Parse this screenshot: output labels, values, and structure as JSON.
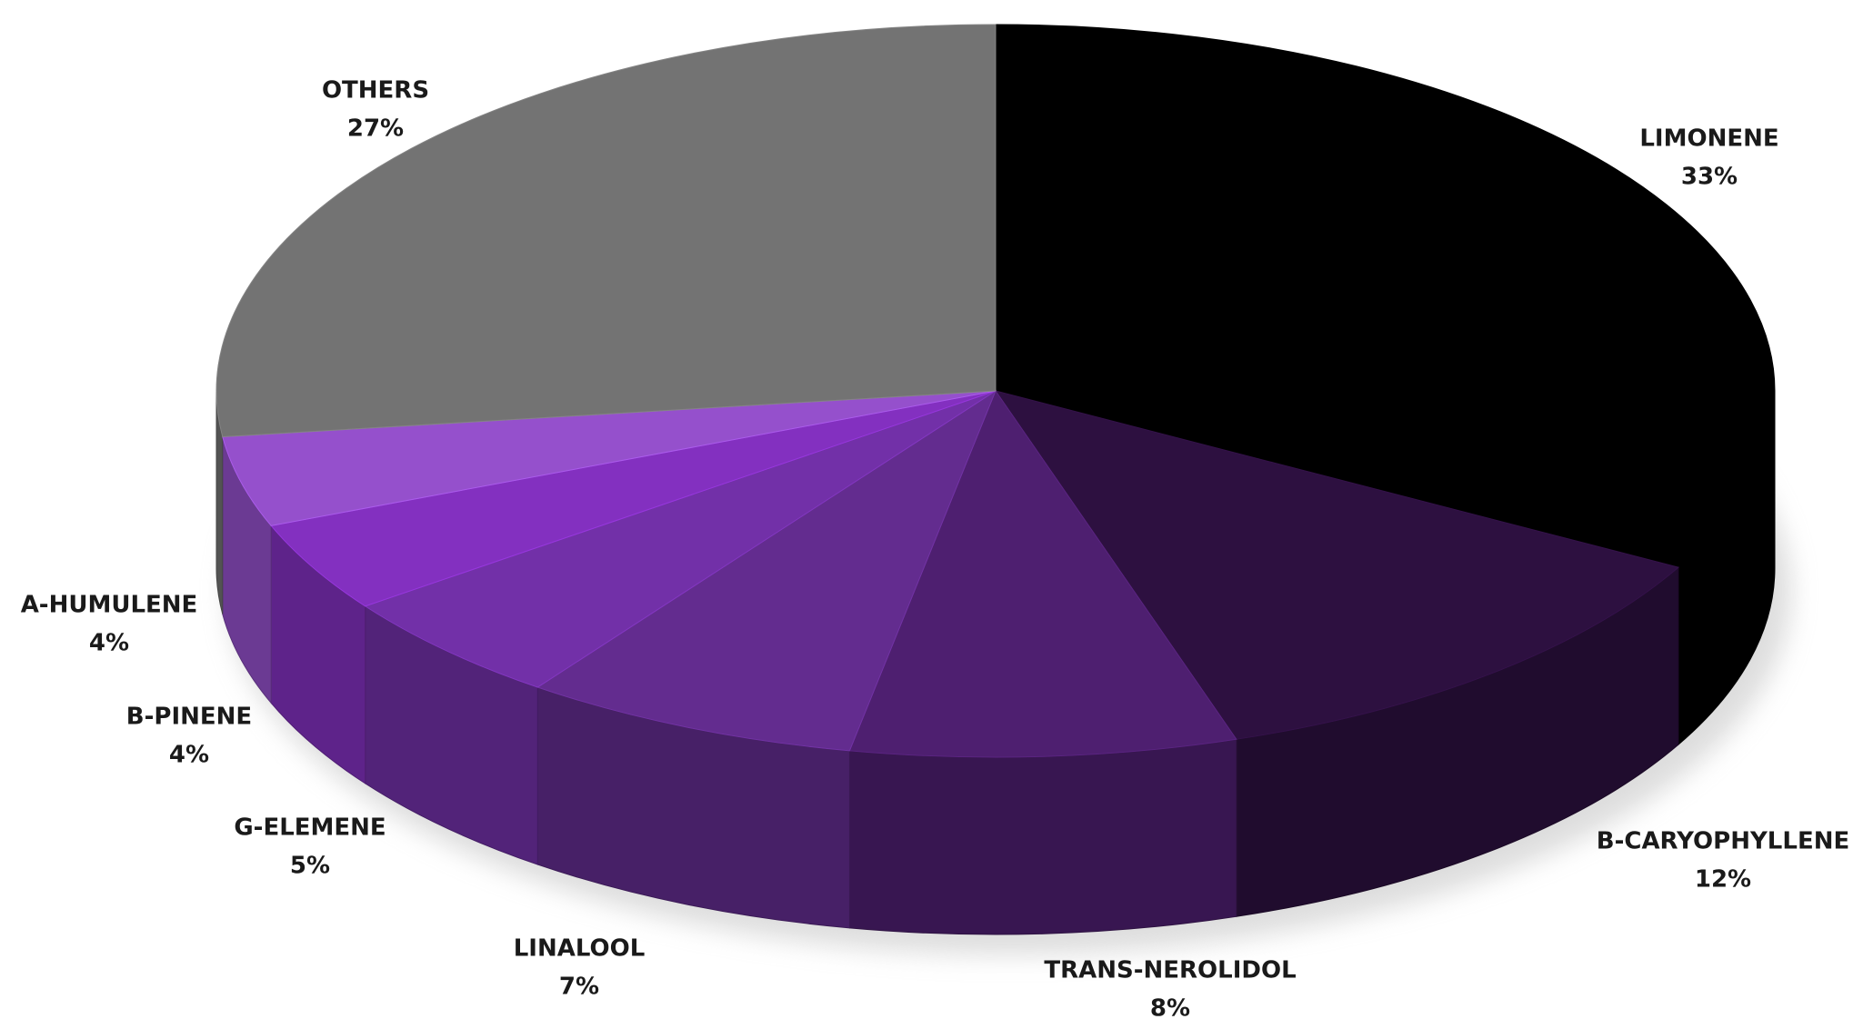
{
  "chart_data": {
    "type": "pie",
    "categories": [
      "LIMONENE",
      "B-CARYOPHYLLENE",
      "TRANS-NEROLIDOL",
      "LINALOOL",
      "G-ELEMENE",
      "B-PINENE",
      "A-HUMULENE",
      "OTHERS"
    ],
    "values": [
      33,
      12,
      8,
      7,
      5,
      4,
      4,
      27
    ],
    "value_labels": [
      "33%",
      "12%",
      "8%",
      "7%",
      "5%",
      "4%",
      "4%",
      "27%"
    ],
    "colors": [
      "#000000",
      "#2d1040",
      "#4e1f70",
      "#632c8f",
      "#7230a8",
      "#8330c0",
      "#9550cc",
      "#737373"
    ]
  }
}
